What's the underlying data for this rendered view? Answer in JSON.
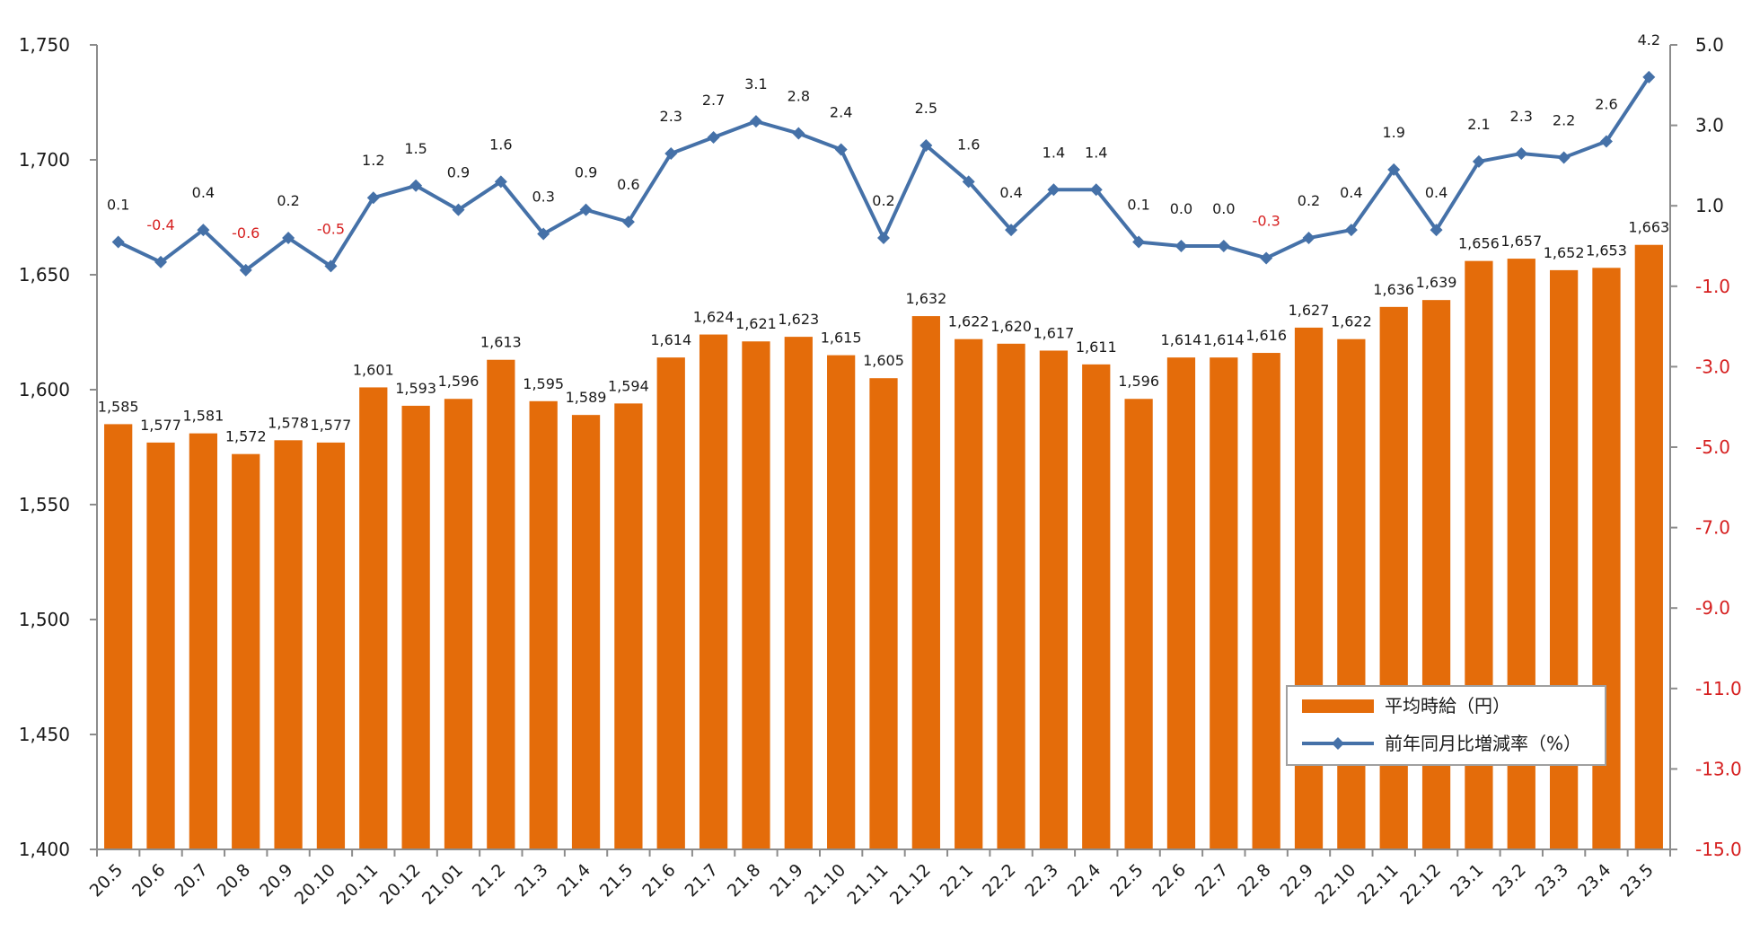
{
  "chart_data": {
    "type": "bar",
    "categories": [
      "20.5",
      "20.6",
      "20.7",
      "20.8",
      "20.9",
      "20.10",
      "20.11",
      "20.12",
      "21.01",
      "21.2",
      "21.3",
      "21.4",
      "21.5",
      "21.6",
      "21.7",
      "21.8",
      "21.9",
      "21.10",
      "21.11",
      "21.12",
      "22.1",
      "22.2",
      "22.3",
      "22.4",
      "22.5",
      "22.6",
      "22.7",
      "22.8",
      "22.9",
      "22.10",
      "22.11",
      "22.12",
      "23.1",
      "23.2",
      "23.3",
      "23.4",
      "23.5"
    ],
    "series": [
      {
        "name": "平均時給（円）",
        "type": "bar",
        "axis": "left",
        "color": "#e46c0a",
        "values": [
          1585,
          1577,
          1581,
          1572,
          1578,
          1577,
          1601,
          1593,
          1596,
          1613,
          1595,
          1589,
          1594,
          1614,
          1624,
          1621,
          1623,
          1615,
          1605,
          1632,
          1622,
          1620,
          1617,
          1611,
          1596,
          1614,
          1614,
          1616,
          1627,
          1622,
          1636,
          1639,
          1656,
          1657,
          1652,
          1653,
          1663
        ]
      },
      {
        "name": "前年同月比増減率（%）",
        "type": "line",
        "axis": "right",
        "color": "#4571a8",
        "marker": "diamond",
        "values": [
          0.1,
          -0.4,
          0.4,
          -0.6,
          0.2,
          -0.5,
          1.2,
          1.5,
          0.9,
          1.6,
          0.3,
          0.9,
          0.6,
          2.3,
          2.7,
          3.1,
          2.8,
          2.4,
          0.2,
          2.5,
          1.6,
          0.4,
          1.4,
          1.4,
          0.1,
          0.0,
          0.0,
          -0.3,
          0.2,
          0.4,
          1.9,
          0.4,
          2.1,
          2.3,
          2.2,
          2.6,
          4.2
        ]
      }
    ],
    "y_left": {
      "ylim": [
        1400,
        1750
      ],
      "ticks": [
        "1,400",
        "1,450",
        "1,500",
        "1,550",
        "1,600",
        "1,650",
        "1,700",
        "1,750"
      ]
    },
    "y_right": {
      "ylim": [
        -15.0,
        5.0
      ],
      "ticks": [
        "-15.0",
        "-13.0",
        "-11.0",
        "-9.0",
        "-7.0",
        "-5.0",
        "-3.0",
        "-1.0",
        "1.0",
        "3.0",
        "5.0"
      ],
      "negative_tick_color": "#d62020"
    },
    "legend": {
      "placement": "bottom-right",
      "entries": [
        "平均時給（円）",
        "前年同月比増減率（%）"
      ]
    },
    "grid": false,
    "data_labels": true,
    "negative_label_color": "#d62020"
  }
}
